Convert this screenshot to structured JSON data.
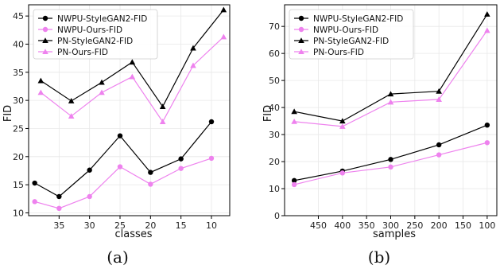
{
  "chart_data": [
    {
      "type": "line",
      "panel_caption": "(a)",
      "xlabel": "classes",
      "ylabel": "FID",
      "x_reversed": true,
      "xlim": [
        40,
        7
      ],
      "ylim": [
        9.5,
        47
      ],
      "xticks": [
        35,
        30,
        25,
        20,
        15,
        10
      ],
      "yticks": [
        10,
        15,
        20,
        25,
        30,
        35,
        40,
        45
      ],
      "grid": true,
      "legend_position": "top-left",
      "series": [
        {
          "name": "NWPU-StyleGAN2-FID",
          "color": "#000000",
          "marker": "circle",
          "x": [
            39,
            35,
            30,
            25,
            20,
            15,
            10
          ],
          "y": [
            15.3,
            12.9,
            17.6,
            23.7,
            17.2,
            19.6,
            26.2
          ]
        },
        {
          "name": "NWPU-Ours-FID",
          "color": "#ee82ee",
          "marker": "circle",
          "x": [
            39,
            35,
            30,
            25,
            20,
            15,
            10
          ],
          "y": [
            12.0,
            10.8,
            12.9,
            18.2,
            15.1,
            17.9,
            19.7
          ]
        },
        {
          "name": "PN-StyleGAN2-FID",
          "color": "#000000",
          "marker": "triangle",
          "x": [
            38,
            33,
            28,
            23,
            18,
            13,
            8
          ],
          "y": [
            33.5,
            29.9,
            33.2,
            36.8,
            28.9,
            39.3,
            46.1
          ]
        },
        {
          "name": "PN-Ours-FID",
          "color": "#ee82ee",
          "marker": "triangle",
          "x": [
            38,
            33,
            28,
            23,
            18,
            13,
            8
          ],
          "y": [
            31.4,
            27.2,
            31.4,
            34.2,
            26.2,
            36.2,
            41.3
          ]
        }
      ]
    },
    {
      "type": "line",
      "panel_caption": "(b)",
      "xlabel": "samples",
      "ylabel": "FID",
      "x_reversed": true,
      "xlim": [
        520,
        80
      ],
      "ylim": [
        0,
        78
      ],
      "xticks": [
        450,
        400,
        350,
        300,
        250,
        200,
        150,
        100
      ],
      "yticks": [
        0,
        10,
        20,
        30,
        40,
        50,
        60,
        70
      ],
      "grid": true,
      "legend_position": "top-left",
      "series": [
        {
          "name": "NWPU-StyleGAN2-FID",
          "color": "#000000",
          "marker": "circle",
          "x": [
            500,
            400,
            300,
            200,
            100
          ],
          "y": [
            13.0,
            16.5,
            20.8,
            26.2,
            33.5
          ]
        },
        {
          "name": "NWPU-Ours-FID",
          "color": "#ee82ee",
          "marker": "circle",
          "x": [
            500,
            400,
            300,
            200,
            100
          ],
          "y": [
            11.5,
            15.8,
            18.0,
            22.5,
            27.0
          ]
        },
        {
          "name": "PN-StyleGAN2-FID",
          "color": "#000000",
          "marker": "triangle",
          "x": [
            500,
            400,
            300,
            200,
            100
          ],
          "y": [
            38.5,
            35.0,
            45.0,
            46.0,
            74.5
          ]
        },
        {
          "name": "PN-Ours-FID",
          "color": "#ee82ee",
          "marker": "triangle",
          "x": [
            500,
            400,
            300,
            200,
            100
          ],
          "y": [
            34.8,
            33.0,
            42.0,
            43.0,
            68.5
          ]
        }
      ]
    }
  ]
}
